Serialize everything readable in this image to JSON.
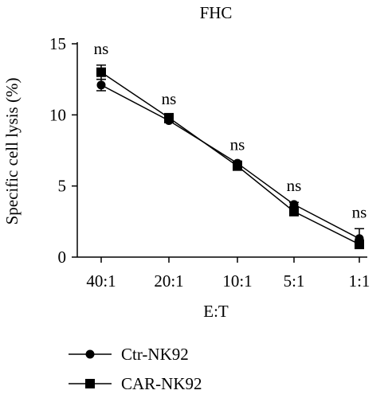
{
  "chart_data": {
    "type": "line",
    "title": "FHC",
    "xlabel": "E:T",
    "ylabel": "Specific cell lysis (%)",
    "categories": [
      "40:1",
      "20:1",
      "10:1",
      "5:1",
      "1:1"
    ],
    "ylim": [
      0,
      15
    ],
    "yticks": [
      0,
      5,
      10,
      15
    ],
    "grid": false,
    "legend_position": "bottom-left",
    "series": [
      {
        "name": "Ctr-NK92",
        "marker": "circle",
        "values": [
          12.1,
          9.6,
          6.6,
          3.7,
          1.3
        ],
        "errors": [
          0.4,
          0.15,
          0.15,
          0.15,
          0.7
        ]
      },
      {
        "name": "CAR-NK92",
        "marker": "square",
        "values": [
          13.0,
          9.8,
          6.4,
          3.2,
          0.9
        ],
        "errors": [
          0.5,
          0.15,
          0.15,
          0.15,
          0.3
        ]
      }
    ],
    "annotations": [
      "ns",
      "ns",
      "ns",
      "ns",
      "ns"
    ],
    "color": "#000000"
  }
}
